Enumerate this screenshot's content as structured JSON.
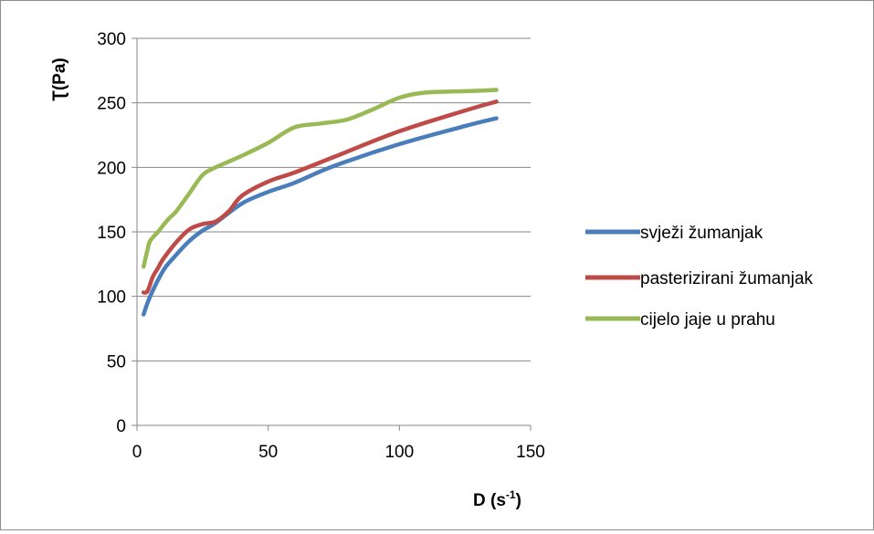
{
  "chart_data": {
    "type": "line",
    "title": "",
    "xlabel": "D (s",
    "xlabel_sup": "-1",
    "xlabel_suffix": ")",
    "ylabel": "Ʈ(Pa)",
    "xlim": [
      0,
      150
    ],
    "ylim": [
      0,
      300
    ],
    "x_ticks": [
      "0",
      "50",
      "100",
      "150"
    ],
    "y_ticks": [
      "0",
      "50",
      "100",
      "150",
      "200",
      "250",
      "300"
    ],
    "grid": "horizontal",
    "legend_position": "right",
    "series": [
      {
        "name": "svježi žumanjak",
        "color": "#4a7ebb",
        "x": [
          2.5,
          5,
          10,
          14,
          20,
          25,
          30,
          40,
          50,
          60,
          75,
          100,
          125,
          137
        ],
        "y": [
          86,
          100,
          120,
          130,
          143,
          151,
          157,
          172,
          181,
          188,
          201,
          218,
          232,
          238
        ]
      },
      {
        "name": "pasterizirani žumanjak",
        "color": "#be4b48",
        "x": [
          2.5,
          4,
          6,
          8,
          10,
          15,
          20,
          25,
          30,
          35,
          40,
          50,
          60,
          75,
          100,
          125,
          137
        ],
        "y": [
          103,
          104,
          115,
          122,
          129,
          142,
          152,
          156,
          158,
          166,
          178,
          189,
          196,
          208,
          228,
          244,
          251
        ]
      },
      {
        "name": "cijelo jaje u prahu",
        "color": "#98b954",
        "x": [
          2.5,
          4,
          5,
          8,
          12,
          15,
          20,
          25,
          30,
          40,
          50,
          60,
          70,
          80,
          90,
          100,
          110,
          125,
          137
        ],
        "y": [
          123,
          136,
          143,
          150,
          160,
          166,
          180,
          194,
          200,
          209,
          219,
          231,
          234,
          237,
          245,
          254,
          258,
          259,
          260
        ]
      }
    ]
  }
}
